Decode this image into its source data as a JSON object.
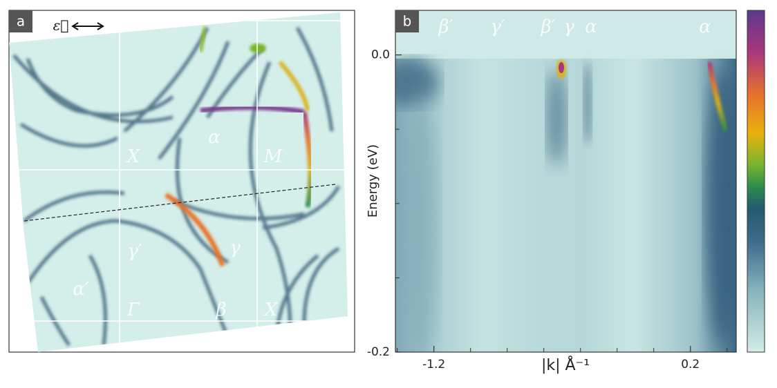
{
  "figure": {
    "panel_a": {
      "label": "a",
      "polarization": "ε⃗",
      "annotations": [
        "α",
        "X",
        "M",
        "γ′",
        "γ",
        "α′",
        "Γ",
        "β",
        "X"
      ]
    }
  },
  "chart_data": {
    "type": "image",
    "label": "b",
    "xlabel": "|k| Å⁻¹",
    "ylabel": "Energy (eV)",
    "xlim": [
      -1.41,
      0.45
    ],
    "xticks": [
      -1.2,
      0.2
    ],
    "xminorticks": [
      -1.4,
      -1.0,
      -0.8,
      -0.6,
      -0.4,
      -0.2,
      0,
      0.4
    ],
    "ylim": [
      -0.2,
      0.03
    ],
    "yticks": [
      {
        "value": 0,
        "label": "0.0"
      },
      -0.2
    ],
    "yminorticks": [
      -0.05,
      -0.1,
      -0.15
    ],
    "annotations": [
      "β′",
      "γ′",
      "β′",
      "γ",
      "α",
      "α"
    ],
    "colorbar": true
  }
}
